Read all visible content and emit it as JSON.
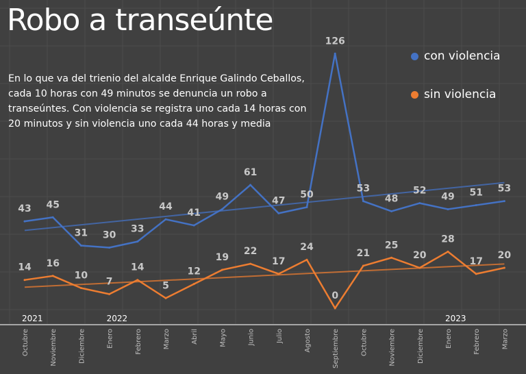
{
  "chart_data": {
    "type": "line",
    "title": "Robo a transeúnte",
    "annotation": "En lo que va del trienio del alcalde Enrique Galindo Ceballos, cada 10 horas con 49 minutos se denuncia un robo a transeúntes. Con violencia se registra uno cada 14 horas con 20 minutos y sin violencia uno cada 44 horas y media",
    "categories": [
      "Octubre",
      "Noviembre",
      "Diciembre",
      "Enero",
      "Febrero",
      "Marzo",
      "Abril",
      "Mayo",
      "Junio",
      "Julio",
      "Agosto",
      "Septiembre",
      "Octubre",
      "Noviembre",
      "Diciembre",
      "Enero",
      "Febrero",
      "Marzo"
    ],
    "year_labels": [
      {
        "index": 0,
        "label": "2021"
      },
      {
        "index": 3,
        "label": "2022"
      },
      {
        "index": 15,
        "label": "2023"
      }
    ],
    "series": [
      {
        "name": "con violencia",
        "color": "#4472c4",
        "values": [
          43,
          45,
          31,
          30,
          33,
          44,
          41,
          49,
          61,
          47,
          50,
          126,
          53,
          48,
          52,
          49,
          51,
          53
        ],
        "trendline": "linear"
      },
      {
        "name": "sin violencia",
        "color": "#ed7d31",
        "values": [
          14,
          16,
          10,
          7,
          14,
          5,
          12,
          19,
          22,
          17,
          24,
          0,
          21,
          25,
          20,
          28,
          17,
          20
        ],
        "trendline": "linear"
      }
    ],
    "ylim": [
      0,
      126
    ],
    "grid": true,
    "legend": "top-right",
    "data_labels": true
  }
}
